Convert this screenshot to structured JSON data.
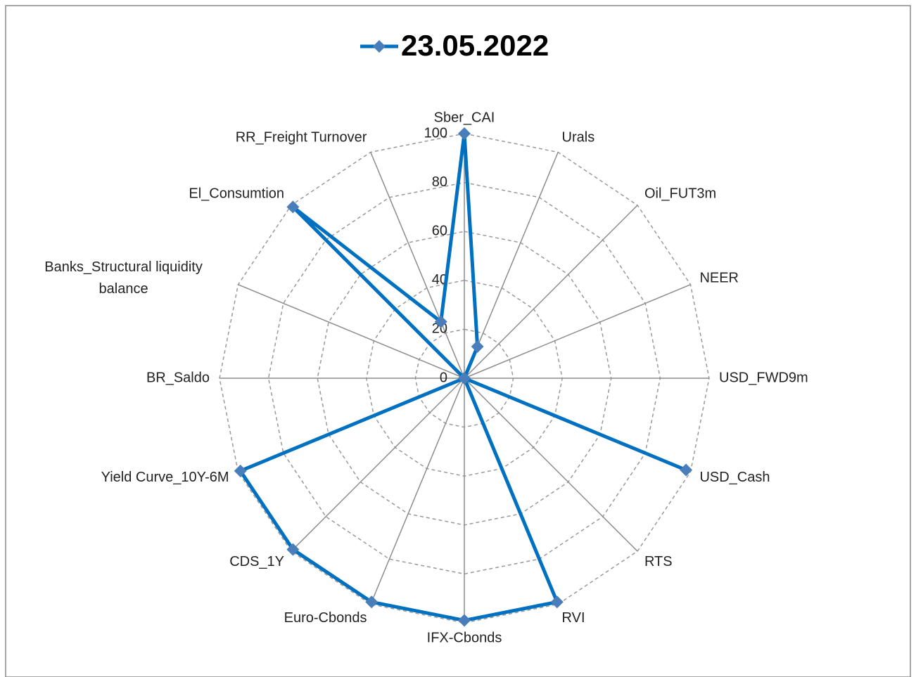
{
  "chart_data": {
    "type": "radar",
    "categories": [
      "Sber_CAI",
      "Urals",
      "Oil_FUT3m",
      "NEER",
      "USD_FWD9m",
      "USD_Cash",
      "RTS",
      "RVI",
      "IFX-Cbonds",
      "Euro-Cbonds",
      "CDS_1Y",
      "Yield Curve_10Y-6M",
      "BR_Saldo",
      "Banks_Structural liquidity balance",
      "El_Consumtion",
      "RR_Freight Turnover"
    ],
    "series": [
      {
        "name": "23.05.2022",
        "color": "#0070c0",
        "marker_color": "#4a7ebb",
        "values": [
          100,
          14,
          0,
          0,
          0,
          98,
          0,
          99,
          99,
          99,
          99,
          99,
          0,
          0,
          99,
          25
        ]
      }
    ],
    "rlim": [
      0,
      100
    ],
    "rticks": [
      0,
      20,
      40,
      60,
      80,
      100
    ],
    "grid": true,
    "legend": "top"
  }
}
